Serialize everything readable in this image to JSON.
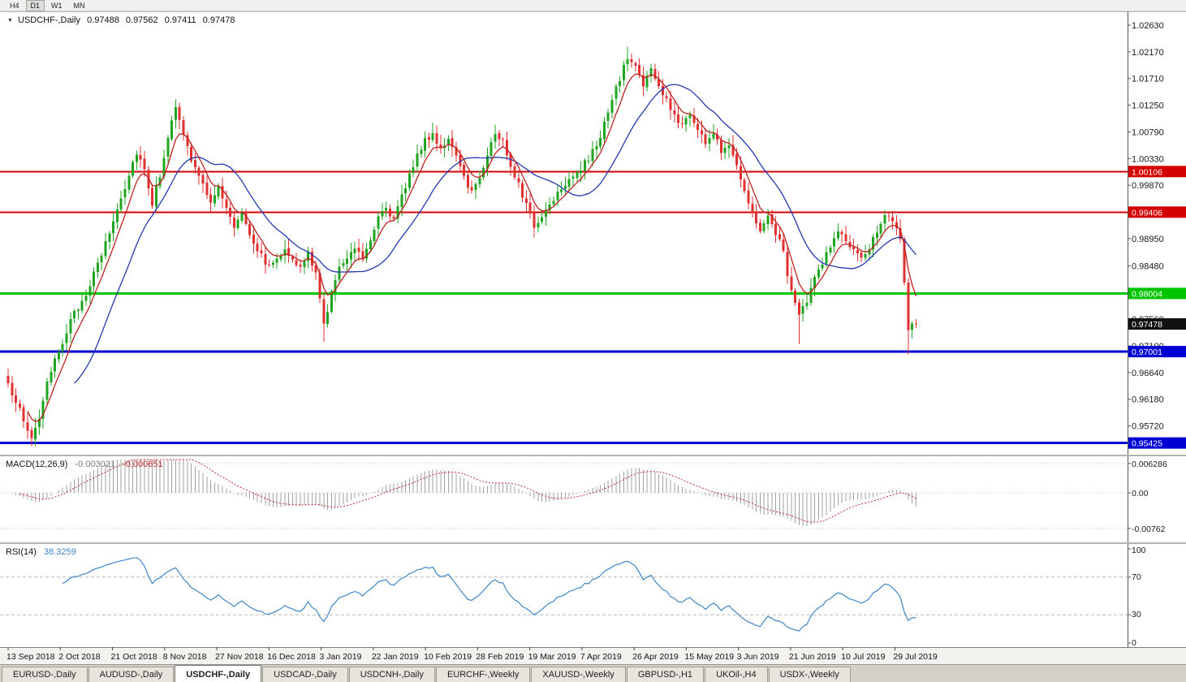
{
  "toolbar": {
    "timeframes": [
      {
        "label": "H4",
        "active": false
      },
      {
        "label": "D1",
        "active": true
      },
      {
        "label": "W1",
        "active": false
      },
      {
        "label": "MN",
        "active": false
      }
    ]
  },
  "price_pane": {
    "header": {
      "symbol": "USDCHF-,Daily",
      "open": "0.97488",
      "high": "0.97562",
      "low": "0.97411",
      "close": "0.97478"
    },
    "axis_ticks": [
      "1.02630",
      "1.02170",
      "1.01710",
      "1.01250",
      "1.00790",
      "1.00330",
      "0.99870",
      "0.98950",
      "0.98480",
      "0.97560",
      "0.97100",
      "0.96640",
      "0.96180",
      "0.95720"
    ],
    "badges": [
      {
        "value": "1.00106",
        "price": 1.00106,
        "bg": "#d40000",
        "fg": "#ffffff"
      },
      {
        "value": "0.99406",
        "price": 0.99406,
        "bg": "#d40000",
        "fg": "#ffffff"
      },
      {
        "value": "0.98004",
        "price": 0.98004,
        "bg": "#00c400",
        "fg": "#ffffff"
      },
      {
        "value": "0.97478",
        "price": 0.97478,
        "bg": "#111111",
        "fg": "#ffffff"
      },
      {
        "value": "0.97001",
        "price": 0.97001,
        "bg": "#0000d4",
        "fg": "#ffffff"
      },
      {
        "value": "0.95425",
        "price": 0.95425,
        "bg": "#0000d4",
        "fg": "#ffffff"
      }
    ],
    "levels": [
      {
        "price": 1.00106,
        "color": "#d40000",
        "width": 2
      },
      {
        "price": 0.99406,
        "color": "#d40000",
        "width": 2
      },
      {
        "price": 0.98004,
        "color": "#00c800",
        "width": 3
      },
      {
        "price": 0.97001,
        "color": "#0000d4",
        "width": 3
      },
      {
        "price": 0.95425,
        "color": "#0000d4",
        "width": 3
      }
    ]
  },
  "macd_pane": {
    "label": "MACD(12,26,9)",
    "value_main": "-0.003021",
    "value_signal": "-0.000651",
    "axis_ticks": [
      {
        "label": "0.006286",
        "value": 0.006286
      },
      {
        "label": "0.00",
        "value": 0
      },
      {
        "label": "-0.00762",
        "value": -0.00762
      }
    ]
  },
  "rsi_pane": {
    "label": "RSI(14)",
    "value": "38.3259",
    "axis_ticks": [
      {
        "label": "100",
        "value": 100
      },
      {
        "label": "70",
        "value": 70
      },
      {
        "label": "30",
        "value": 30
      },
      {
        "label": "0",
        "value": 0
      }
    ],
    "levels": [
      70,
      30
    ]
  },
  "date_axis": {
    "labels": [
      "13 Sep 2018",
      "2 Oct 2018",
      "21 Oct 2018",
      "8 Nov 2018",
      "27 Nov 2018",
      "16 Dec 2018",
      "3 Jan 2019",
      "22 Jan 2019",
      "10 Feb 2019",
      "28 Feb 2019",
      "19 Mar 2019",
      "7 Apr 2019",
      "26 Apr 2019",
      "15 May 2019",
      "3 Jun 2019",
      "21 Jun 2019",
      "10 Jul 2019",
      "29 Jul 2019"
    ]
  },
  "tabs": [
    {
      "label": "EURUSD-,Daily",
      "active": false
    },
    {
      "label": "AUDUSD-,Daily",
      "active": false
    },
    {
      "label": "USDCHF-,Daily",
      "active": true
    },
    {
      "label": "USDCAD-,Daily",
      "active": false
    },
    {
      "label": "USDCNH-,Daily",
      "active": false
    },
    {
      "label": "EURCHF-,Weekly",
      "active": false
    },
    {
      "label": "XAUUSD-,Weekly",
      "active": false
    },
    {
      "label": "GBPUSD-,H1",
      "active": false
    },
    {
      "label": "UKOil-,H4",
      "active": false
    },
    {
      "label": "USDX-,Weekly",
      "active": false
    }
  ],
  "colors": {
    "candle_up": "#1fa51f",
    "candle_down": "#e03030",
    "ma_fast_red": "#c02020",
    "ma_slow_blue": "#2438b0",
    "macd_hist": "#a0a0a0",
    "macd_signal": "#c03030",
    "rsi_line": "#3f86c8",
    "axis_text": "#1a1a1a"
  },
  "chart_data": {
    "type": "candlestick",
    "symbol": "USDCHF",
    "timeframe": "Daily",
    "title": "USDCHF-,Daily",
    "current_bar": {
      "open": 0.97488,
      "high": 0.97562,
      "low": 0.97411,
      "close": 0.97478
    },
    "bar_count": 234,
    "price_axis_range": [
      0.9525,
      1.027
    ],
    "horizontal_levels": {
      "resistance_red": [
        1.00106,
        0.99406
      ],
      "support_green": 0.98004,
      "support_blue": [
        0.97001,
        0.95425
      ]
    },
    "indicators": {
      "macd": {
        "fast": 12,
        "slow": 26,
        "signal": 9,
        "current_main": -0.003021,
        "current_signal": -0.000651,
        "axis_max": 0.006286,
        "axis_min": -0.00762
      },
      "rsi": {
        "period": 14,
        "current": 38.3259,
        "scale": [
          0,
          100
        ],
        "levels": [
          30,
          70
        ]
      },
      "ma_lines": [
        {
          "type": "ema",
          "period": 6,
          "color": "#c02020"
        },
        {
          "type": "sma",
          "period": 18,
          "color": "#2438b0"
        }
      ]
    },
    "close_path": [
      [
        0,
        0.964
      ],
      [
        2,
        0.9618
      ],
      [
        4,
        0.9578
      ],
      [
        6,
        0.9552
      ],
      [
        8,
        0.9588
      ],
      [
        10,
        0.9642
      ],
      [
        13,
        0.9702
      ],
      [
        16,
        0.9752
      ],
      [
        19,
        0.9788
      ],
      [
        22,
        0.9832
      ],
      [
        25,
        0.9886
      ],
      [
        27,
        0.9926
      ],
      [
        30,
        0.9986
      ],
      [
        33,
        1.0046
      ],
      [
        35,
        1.0016
      ],
      [
        37,
        0.9956
      ],
      [
        39,
        1.0006
      ],
      [
        41,
        1.0072
      ],
      [
        43,
        1.0118
      ],
      [
        45,
        1.0076
      ],
      [
        47,
        1.003
      ],
      [
        50,
        0.9986
      ],
      [
        52,
        0.9962
      ],
      [
        54,
        0.9982
      ],
      [
        56,
        0.9946
      ],
      [
        58,
        0.9916
      ],
      [
        60,
        0.9942
      ],
      [
        62,
        0.9906
      ],
      [
        64,
        0.9876
      ],
      [
        67,
        0.9846
      ],
      [
        69,
        0.9862
      ],
      [
        71,
        0.9882
      ],
      [
        73,
        0.9856
      ],
      [
        75,
        0.9842
      ],
      [
        77,
        0.9872
      ],
      [
        79,
        0.9832
      ],
      [
        81,
        0.9746
      ],
      [
        83,
        0.9802
      ],
      [
        85,
        0.9842
      ],
      [
        87,
        0.9866
      ],
      [
        89,
        0.9882
      ],
      [
        91,
        0.9862
      ],
      [
        93,
        0.9896
      ],
      [
        95,
        0.9936
      ],
      [
        97,
        0.9952
      ],
      [
        99,
        0.9926
      ],
      [
        101,
        0.9966
      ],
      [
        103,
        1.0006
      ],
      [
        105,
        1.0042
      ],
      [
        107,
        1.0062
      ],
      [
        109,
        1.0076
      ],
      [
        111,
        1.0052
      ],
      [
        113,
        1.0066
      ],
      [
        115,
        1.0032
      ],
      [
        117,
        1.0002
      ],
      [
        119,
        0.9976
      ],
      [
        121,
        1.0002
      ],
      [
        123,
        1.0042
      ],
      [
        125,
        1.0076
      ],
      [
        127,
        1.0062
      ],
      [
        129,
        1.0022
      ],
      [
        131,
        0.9992
      ],
      [
        133,
        0.9952
      ],
      [
        135,
        0.9916
      ],
      [
        137,
        0.9932
      ],
      [
        139,
        0.9956
      ],
      [
        141,
        0.9976
      ],
      [
        143,
        0.9992
      ],
      [
        145,
        1.0006
      ],
      [
        147,
        1.0016
      ],
      [
        149,
        1.0032
      ],
      [
        151,
        1.0056
      ],
      [
        153,
        1.0092
      ],
      [
        155,
        1.0132
      ],
      [
        157,
        1.0172
      ],
      [
        159,
        1.0206
      ],
      [
        161,
        1.0192
      ],
      [
        163,
        1.0162
      ],
      [
        165,
        1.0186
      ],
      [
        167,
        1.0156
      ],
      [
        169,
        1.0132
      ],
      [
        171,
        1.0106
      ],
      [
        173,
        1.0092
      ],
      [
        175,
        1.0112
      ],
      [
        177,
        1.0082
      ],
      [
        179,
        1.0062
      ],
      [
        181,
        1.0076
      ],
      [
        183,
        1.0046
      ],
      [
        185,
        1.0062
      ],
      [
        187,
        1.0022
      ],
      [
        189,
        0.9982
      ],
      [
        191,
        0.9936
      ],
      [
        193,
        0.9912
      ],
      [
        195,
        0.9932
      ],
      [
        197,
        0.9906
      ],
      [
        199,
        0.9872
      ],
      [
        201,
        0.9802
      ],
      [
        203,
        0.9762
      ],
      [
        205,
        0.9786
      ],
      [
        207,
        0.9826
      ],
      [
        209,
        0.9856
      ],
      [
        211,
        0.9882
      ],
      [
        213,
        0.9906
      ],
      [
        215,
        0.9892
      ],
      [
        217,
        0.9872
      ],
      [
        219,
        0.9856
      ],
      [
        221,
        0.9882
      ],
      [
        223,
        0.9912
      ],
      [
        225,
        0.9936
      ],
      [
        227,
        0.9922
      ],
      [
        229,
        0.9892
      ],
      [
        230,
        0.9822
      ],
      [
        231,
        0.9732
      ],
      [
        232,
        0.9752
      ],
      [
        233,
        0.97478
      ]
    ],
    "extremes": [
      {
        "index": 6,
        "low": 0.9542
      },
      {
        "index": 43,
        "high": 1.0135
      },
      {
        "index": 81,
        "low": 0.9717
      },
      {
        "index": 109,
        "high": 1.0095
      },
      {
        "index": 159,
        "high": 1.0226
      },
      {
        "index": 203,
        "low": 0.9713
      },
      {
        "index": 231,
        "low": 0.9695
      }
    ]
  }
}
